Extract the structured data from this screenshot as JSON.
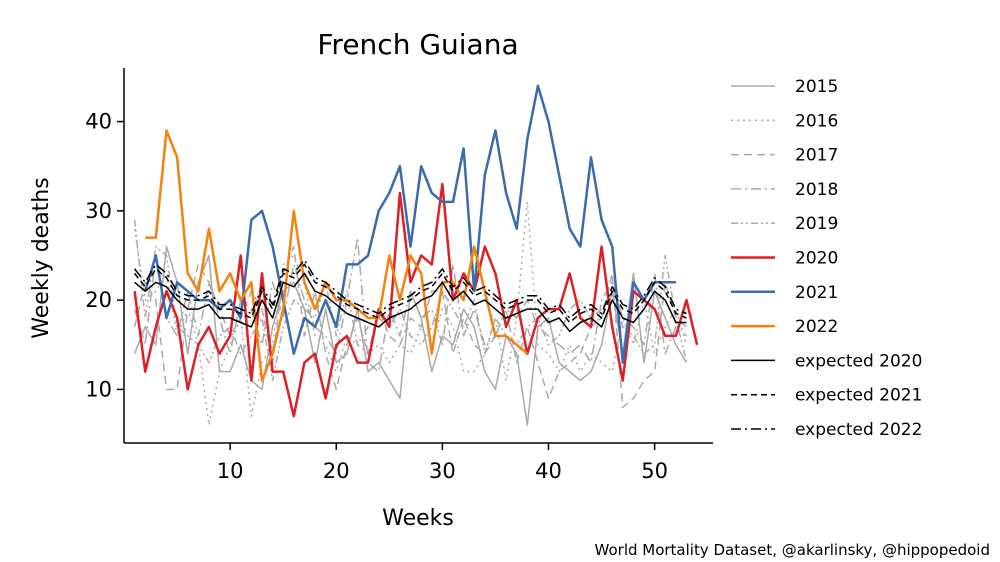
{
  "chart_data": {
    "type": "line",
    "title": "French Guiana",
    "xlabel": "Weeks",
    "ylabel": "Weekly deaths",
    "credit": "World Mortality Dataset, @akarlinsky, @hippopedoid",
    "xlim": [
      0,
      55.5
    ],
    "ylim": [
      4,
      46
    ],
    "xticks": [
      10,
      20,
      30,
      40,
      50
    ],
    "yticks": [
      10,
      20,
      30,
      40
    ],
    "grid": false,
    "legend_position": "right-outside",
    "series": [
      {
        "name": "2015",
        "color": "#aaaaaa",
        "dash": "",
        "width": 1.5,
        "values": [
          14,
          17,
          15,
          26,
          22,
          14,
          22,
          25,
          12,
          12,
          15,
          11,
          10,
          17,
          21,
          22,
          19,
          13,
          19,
          13,
          14,
          19,
          12,
          13,
          11,
          9,
          21,
          18,
          12,
          16,
          15,
          19,
          17,
          12,
          10,
          16,
          14,
          6,
          17,
          18,
          13,
          12,
          11,
          12,
          15,
          21,
          14,
          23,
          13,
          21,
          18,
          15,
          13
        ]
      },
      {
        "name": "2016",
        "color": "#aaaaaa",
        "dash": "2 4",
        "width": 1.5,
        "values": [
          28,
          20,
          21,
          23,
          16,
          19,
          15,
          6,
          12,
          15,
          18,
          7,
          13,
          15,
          24,
          25,
          22,
          16,
          15,
          12,
          16,
          15,
          14,
          15,
          13,
          15,
          14,
          17,
          15,
          19,
          17,
          12,
          12,
          14,
          18,
          11,
          18,
          31,
          15,
          14,
          12,
          15,
          12,
          14,
          13,
          12,
          18,
          15,
          20,
          14,
          17,
          19,
          15
        ]
      },
      {
        "name": "2017",
        "color": "#aaaaaa",
        "dash": "8 5",
        "width": 1.5,
        "values": [
          17,
          22,
          20,
          10,
          10,
          19,
          24,
          22,
          19,
          16,
          18,
          21,
          19,
          13,
          23,
          26,
          16,
          21,
          14,
          10,
          15,
          18,
          14,
          19,
          16,
          15,
          18,
          17,
          21,
          21,
          14,
          18,
          15,
          14,
          16,
          19,
          13,
          17,
          13,
          9,
          12,
          13,
          14,
          17,
          18,
          23,
          8,
          9,
          11,
          12,
          22,
          18,
          17
        ]
      },
      {
        "name": "2018",
        "color": "#aaaaaa",
        "dash": "10 4 2 4",
        "width": 1.5,
        "values": [
          19,
          15,
          25,
          18,
          16,
          21,
          16,
          22,
          18,
          14,
          20,
          19,
          15,
          22,
          18,
          24,
          20,
          17,
          16,
          14,
          20,
          27,
          13,
          12,
          19,
          16,
          21,
          18,
          19,
          15,
          24,
          16,
          19,
          15,
          16,
          19,
          18,
          20,
          17,
          16,
          15,
          14,
          15,
          13,
          20,
          22,
          18,
          17,
          15,
          23,
          14,
          17,
          16
        ]
      },
      {
        "name": "2019",
        "color": "#aaaaaa",
        "dash": "7 3 2 3 2 3",
        "width": 1.5,
        "values": [
          29,
          18,
          26,
          25,
          17,
          16,
          15,
          13,
          16,
          17,
          14,
          16,
          18,
          11,
          17,
          20,
          19,
          18,
          22,
          16,
          21,
          15,
          17,
          18,
          17,
          19,
          16,
          15,
          17,
          21,
          19,
          17,
          20,
          14,
          18,
          16,
          15,
          17,
          18,
          15,
          16,
          19,
          20,
          18,
          19,
          21,
          17,
          16,
          14,
          15,
          25,
          18,
          13
        ]
      },
      {
        "name": "2020",
        "color": "#de2026",
        "dash": "",
        "width": 2.5,
        "values": [
          21,
          12,
          17,
          21,
          18,
          10,
          15,
          17,
          14,
          16,
          25,
          11,
          23,
          12,
          12,
          7,
          13,
          14,
          9,
          15,
          16,
          13,
          13,
          19,
          17,
          32,
          22,
          25,
          24,
          33,
          20,
          23,
          21,
          26,
          23,
          17,
          20,
          14,
          18,
          19,
          19,
          23,
          18,
          17,
          26,
          17,
          11,
          21,
          20,
          19,
          16,
          16,
          20,
          15
        ]
      },
      {
        "name": "2021",
        "color": "#396bb0",
        "dash": "",
        "width": 2.5,
        "values": [
          null,
          21,
          25,
          18,
          22,
          21,
          20,
          20,
          19,
          20,
          18,
          29,
          30,
          26,
          20,
          14,
          18,
          17,
          20,
          17,
          24,
          24,
          25,
          30,
          32,
          35,
          26,
          35,
          32,
          31,
          31,
          37,
          21,
          34,
          39,
          32,
          28,
          38,
          44,
          40,
          34,
          28,
          26,
          36,
          29,
          26,
          13,
          22,
          20,
          22,
          22,
          22
        ]
      },
      {
        "name": "2022",
        "color": "#f6820e",
        "dash": "",
        "width": 2.5,
        "values": [
          null,
          27,
          27,
          39,
          36,
          23,
          21,
          28,
          21,
          23,
          20,
          22,
          11,
          14,
          19,
          30,
          22,
          19,
          22,
          20,
          20,
          19,
          18,
          18,
          25,
          20,
          25,
          23,
          14,
          22,
          22,
          20,
          26,
          21,
          16,
          16,
          15,
          14
        ]
      },
      {
        "name": "expected 2020",
        "color": "#000000",
        "dash": "",
        "width": 1.5,
        "values": [
          22,
          21,
          22,
          21.5,
          20,
          19,
          19,
          19.5,
          18,
          18,
          17.5,
          17,
          20,
          18,
          22,
          21.5,
          23,
          21,
          20.5,
          19.5,
          18.5,
          18,
          17.5,
          17,
          18,
          18.5,
          19,
          20,
          20.5,
          22,
          20,
          21,
          19.5,
          20,
          19,
          18,
          18.5,
          19,
          19,
          17.5,
          18,
          16.5,
          17.5,
          18,
          17,
          20,
          18,
          17.5,
          19,
          21,
          20,
          17.5,
          17.5
        ]
      },
      {
        "name": "expected 2021",
        "color": "#000000",
        "dash": "6 4",
        "width": 1.5,
        "values": [
          23,
          21.5,
          23.5,
          22.5,
          20.5,
          20,
          20,
          20.5,
          19,
          19,
          18.5,
          18,
          21,
          19,
          23,
          22.5,
          24,
          22,
          21.5,
          20.5,
          19.5,
          19,
          18.5,
          18,
          19,
          19.5,
          20,
          21,
          21.5,
          23,
          21,
          22,
          20.5,
          21,
          20,
          19,
          19.5,
          20,
          20,
          18.5,
          19,
          17.5,
          18.5,
          19,
          18,
          21,
          19,
          18.5,
          20,
          22,
          21,
          18.5,
          18
        ]
      },
      {
        "name": "expected 2022",
        "color": "#000000",
        "dash": "10 4 2 4",
        "width": 1.5,
        "values": [
          23.5,
          22,
          24,
          23,
          21,
          20.5,
          20.5,
          21,
          19.5,
          19.5,
          19,
          18.5,
          21.5,
          19.5,
          23.5,
          23,
          24.5,
          22.5,
          22,
          21,
          20,
          19.5,
          19,
          18.5,
          19.5,
          20,
          20.5,
          21.5,
          22,
          23.5,
          21.5,
          22.5,
          21,
          21.5,
          20.5,
          19.5,
          20,
          20.5,
          20.5,
          19,
          19.5,
          18,
          19,
          19.5,
          18.5,
          21.5,
          19.5,
          19,
          20.5,
          22.5,
          21.5,
          19,
          18.5
        ]
      }
    ]
  }
}
